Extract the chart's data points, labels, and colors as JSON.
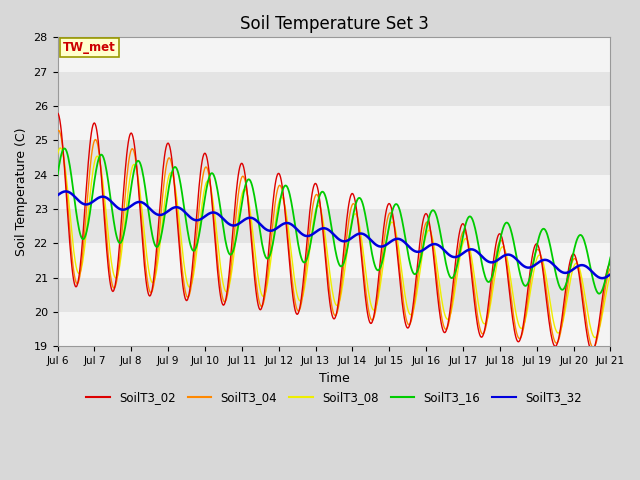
{
  "title": "Soil Temperature Set 3",
  "xlabel": "Time",
  "ylabel": "Soil Temperature (C)",
  "ylim": [
    19.0,
    28.0
  ],
  "yticks": [
    19.0,
    20.0,
    21.0,
    22.0,
    23.0,
    24.0,
    25.0,
    26.0,
    27.0,
    28.0
  ],
  "annotation": "TW_met",
  "colors": {
    "SoilT3_02": "#dd0000",
    "SoilT3_04": "#ff8800",
    "SoilT3_08": "#eeee00",
    "SoilT3_16": "#00cc00",
    "SoilT3_32": "#0000dd"
  },
  "legend_labels": [
    "SoilT3_02",
    "SoilT3_04",
    "SoilT3_08",
    "SoilT3_16",
    "SoilT3_32"
  ],
  "bg_color": "#d8d8d8",
  "plot_bg_light": "#f4f4f4",
  "plot_bg_dark": "#e4e4e4",
  "start_day": 6,
  "end_day": 21,
  "n_points": 720
}
